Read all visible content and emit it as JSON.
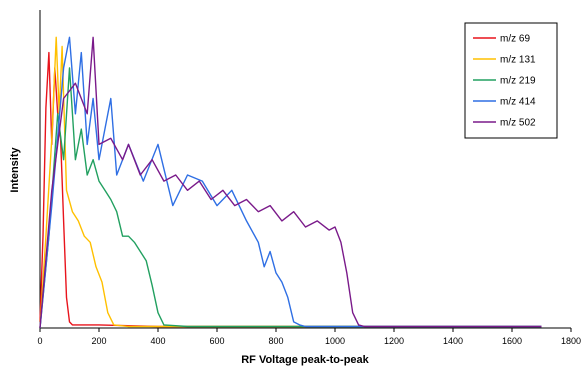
{
  "chart_data": {
    "type": "line",
    "title": "",
    "xlabel": "RF Voltage peak-to-peak",
    "ylabel": "Intensity",
    "xlim": [
      0,
      1800
    ],
    "x_ticks": [
      0,
      200,
      400,
      600,
      800,
      1000,
      1200,
      1400,
      1600,
      1800
    ],
    "x_tick_labels": [
      "0",
      "200",
      "400",
      "600",
      "800",
      "1000",
      "1200",
      "1400",
      "1600",
      "1800"
    ],
    "ylim": [
      0,
      1
    ],
    "y_ticks_shown": false,
    "grid": false,
    "legend_position": "top-right",
    "series": [
      {
        "name": "m/z 69",
        "color": "#e8141c",
        "x": [
          0,
          10,
          20,
          30,
          40,
          50,
          60,
          70,
          80,
          90,
          100,
          110,
          200,
          400,
          1100
        ],
        "y": [
          0.02,
          0.3,
          0.72,
          0.9,
          0.6,
          0.85,
          0.7,
          0.62,
          0.35,
          0.1,
          0.02,
          0.01,
          0.01,
          0.005,
          0.005
        ]
      },
      {
        "name": "m/z 131",
        "color": "#ffc000",
        "x": [
          0,
          20,
          40,
          55,
          65,
          75,
          90,
          110,
          130,
          150,
          170,
          190,
          210,
          230,
          250,
          300,
          1700
        ],
        "y": [
          0.0,
          0.3,
          0.62,
          0.95,
          0.7,
          0.92,
          0.45,
          0.38,
          0.35,
          0.3,
          0.28,
          0.2,
          0.15,
          0.05,
          0.01,
          0.005,
          0.005
        ]
      },
      {
        "name": "m/z 219",
        "color": "#22a060",
        "x": [
          0,
          30,
          60,
          80,
          100,
          120,
          140,
          160,
          180,
          200,
          220,
          240,
          260,
          280,
          300,
          320,
          340,
          360,
          380,
          400,
          420,
          500,
          1700
        ],
        "y": [
          0.0,
          0.3,
          0.7,
          0.55,
          0.85,
          0.55,
          0.65,
          0.5,
          0.55,
          0.48,
          0.45,
          0.42,
          0.38,
          0.3,
          0.3,
          0.28,
          0.25,
          0.22,
          0.14,
          0.05,
          0.01,
          0.005,
          0.005
        ]
      },
      {
        "name": "m/z 414",
        "color": "#2f6fe4",
        "x": [
          0,
          40,
          80,
          100,
          120,
          140,
          160,
          180,
          200,
          220,
          240,
          260,
          280,
          300,
          350,
          400,
          450,
          500,
          550,
          600,
          650,
          700,
          740,
          760,
          780,
          800,
          820,
          840,
          860,
          880,
          900,
          1000,
          1700
        ],
        "y": [
          0.0,
          0.4,
          0.85,
          0.95,
          0.7,
          0.9,
          0.6,
          0.75,
          0.55,
          0.65,
          0.75,
          0.5,
          0.55,
          0.6,
          0.48,
          0.6,
          0.4,
          0.5,
          0.48,
          0.4,
          0.45,
          0.35,
          0.28,
          0.2,
          0.25,
          0.18,
          0.15,
          0.1,
          0.02,
          0.01,
          0.005,
          0.005,
          0.005
        ]
      },
      {
        "name": "m/z 502",
        "color": "#7a1a8a",
        "x": [
          0,
          40,
          80,
          120,
          160,
          180,
          200,
          240,
          280,
          300,
          340,
          380,
          420,
          460,
          500,
          540,
          580,
          620,
          660,
          700,
          740,
          780,
          820,
          860,
          900,
          940,
          980,
          1000,
          1020,
          1040,
          1060,
          1080,
          1100,
          1700
        ],
        "y": [
          0.0,
          0.45,
          0.75,
          0.8,
          0.7,
          0.95,
          0.6,
          0.62,
          0.55,
          0.6,
          0.5,
          0.55,
          0.48,
          0.5,
          0.45,
          0.48,
          0.42,
          0.45,
          0.4,
          0.42,
          0.38,
          0.4,
          0.35,
          0.38,
          0.33,
          0.35,
          0.32,
          0.33,
          0.28,
          0.18,
          0.05,
          0.01,
          0.005,
          0.005
        ]
      }
    ]
  }
}
